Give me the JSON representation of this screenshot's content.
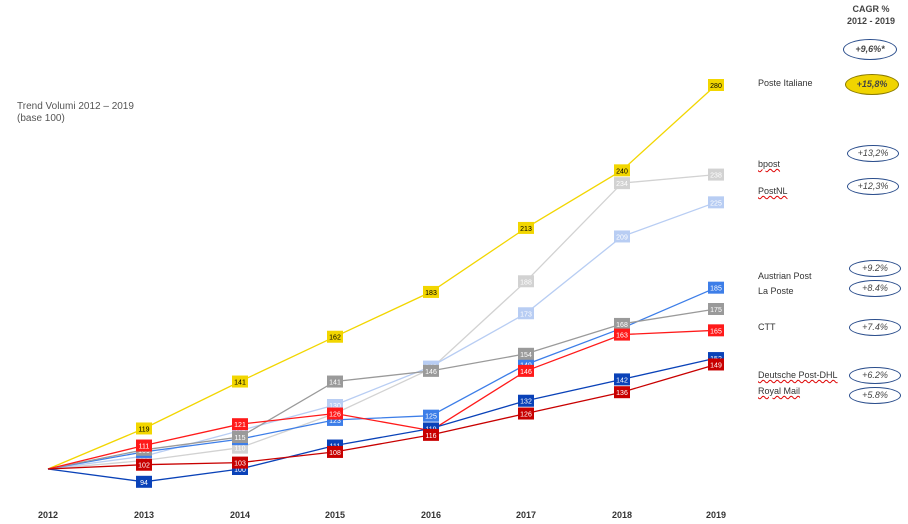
{
  "title": {
    "line1": "Trend Volumi 2012 – 2019",
    "line2": "(base 100)"
  },
  "cagr": {
    "header1": "CAGR %",
    "header2": "2012 - 2019",
    "overall": "+9,6%*"
  },
  "chart_data": {
    "type": "line",
    "x": [
      "2012",
      "2013",
      "2014",
      "2015",
      "2016",
      "2017",
      "2018",
      "2019"
    ],
    "ylim": [
      90,
      285
    ],
    "grid": false,
    "legend": "right",
    "series": [
      {
        "name": "Poste Italiane",
        "cagr": "+15,8%",
        "color": "#f2d600",
        "text": "#000000",
        "values": [
          100,
          119,
          141,
          162,
          183,
          213,
          240,
          280
        ]
      },
      {
        "name": "bpost",
        "cagr": "+13,2%",
        "color": "#d2d2d2",
        "text": "#ffffff",
        "values": [
          100,
          104,
          110,
          126,
          147,
          188,
          234,
          238
        ]
      },
      {
        "name": "PostNL",
        "cagr": "+12,3%",
        "color": "#b8cdf3",
        "text": "#ffffff",
        "values": [
          100,
          106,
          118,
          130,
          148,
          173,
          209,
          225
        ]
      },
      {
        "name": "Austrian Post",
        "cagr": "+9.2%",
        "color": "#3d7ee8",
        "text": "#ffffff",
        "values": [
          100,
          108,
          114,
          123,
          125,
          149,
          166,
          185
        ]
      },
      {
        "name": "La Poste",
        "cagr": "+8.4%",
        "color": "#9a9a9a",
        "text": "#ffffff",
        "values": [
          100,
          109,
          115,
          141,
          146,
          154,
          168,
          175
        ]
      },
      {
        "name": "CTT",
        "cagr": "+7.4%",
        "color": "#ff1a1a",
        "text": "#ffffff",
        "values": [
          100,
          111,
          121,
          126,
          118,
          146,
          163,
          165
        ]
      },
      {
        "name": "Deutsche Post-DHL",
        "cagr": "+6.2%",
        "color": "#0a42b8",
        "text": "#ffffff",
        "values": [
          100,
          94,
          100,
          111,
          119,
          132,
          142,
          152
        ]
      },
      {
        "name": "Royal Mail",
        "cagr": "+5.8%",
        "color": "#c80000",
        "text": "#ffffff",
        "values": [
          100,
          102,
          103,
          108,
          116,
          126,
          136,
          149
        ]
      }
    ]
  }
}
